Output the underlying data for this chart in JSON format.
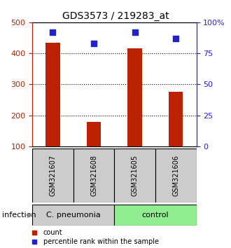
{
  "title": "GDS3573 / 219283_at",
  "samples": [
    "GSM321607",
    "GSM321608",
    "GSM321605",
    "GSM321606"
  ],
  "counts": [
    435,
    178,
    415,
    277
  ],
  "percentiles": [
    92,
    83,
    92,
    87
  ],
  "groups": [
    {
      "label": "C. pneumonia",
      "indices": [
        0,
        1
      ],
      "color": "#cccccc"
    },
    {
      "label": "control",
      "indices": [
        2,
        3
      ],
      "color": "#90ee90"
    }
  ],
  "left_ylim": [
    100,
    500
  ],
  "right_ylim": [
    0,
    100
  ],
  "left_yticks": [
    100,
    200,
    300,
    400,
    500
  ],
  "right_yticks": [
    0,
    25,
    50,
    75,
    100
  ],
  "right_yticklabels": [
    "0",
    "25",
    "50",
    "75",
    "100%"
  ],
  "bar_color": "#bb2200",
  "dot_color": "#2222cc",
  "bar_width": 0.35,
  "infection_label": "infection",
  "legend_count_label": "count",
  "legend_pct_label": "percentile rank within the sample"
}
